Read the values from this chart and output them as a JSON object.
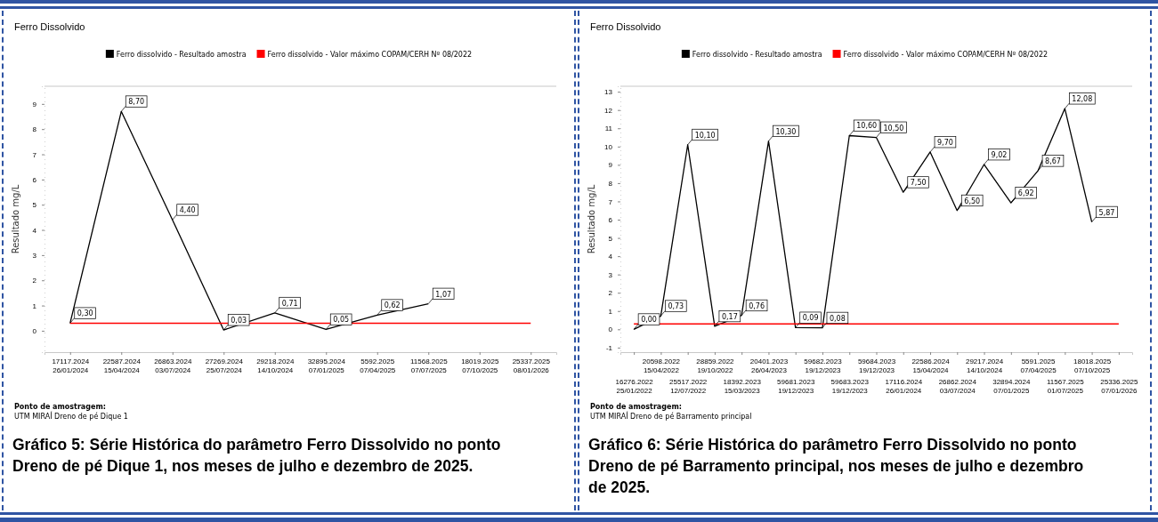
{
  "chart_data": [
    {
      "type": "line",
      "title": "Ferro Dissolvido",
      "ylabel": "Resultado mg/L",
      "categories": [
        "17117.2024\n26/01/2024",
        "22587.2024\n15/04/2024",
        "26863.2024\n03/07/2024",
        "27269.2024\n25/07/2024",
        "29218.2024\n14/10/2024",
        "32895.2024\n07/01/2025",
        "5592.2025\n07/04/2025",
        "11568.2025\n07/07/2025",
        "18019.2025\n07/10/2025",
        "25337.2025\n08/01/2026"
      ],
      "series": [
        {
          "name": "Ferro dissolvido - Resultado amostra",
          "color": "#000000",
          "values": [
            0.3,
            8.7,
            4.4,
            0.03,
            0.71,
            0.05,
            0.62,
            1.07,
            null,
            null
          ],
          "value_labels": [
            "0,30",
            "8,70",
            "4,40",
            "0,03",
            "0,71",
            "0,05",
            "0,62",
            "1,07",
            null,
            null
          ]
        },
        {
          "name": "Ferro dissolvido - Valor máximo COPAM/CERH Nº 08/2022",
          "color": "#ff0000",
          "values": [
            0.3,
            0.3,
            0.3,
            0.3,
            0.3,
            0.3,
            0.3,
            0.3,
            0.3,
            0.3
          ]
        }
      ],
      "ylim": [
        -0.85,
        9.7
      ],
      "yticks": [
        0,
        1,
        2,
        3,
        4,
        5,
        6,
        7,
        8,
        9
      ],
      "legend": "top",
      "marker": "none",
      "annotations": [
        "Ponto de amostragem:",
        "UTM MIRAÍ Dreno de pé Dique 1",
        "Gráfico 5: Série Histórica do parâmetro Ferro Dissolvido no ponto Dreno de pé Dique 1, nos meses de julho e dezembro de 2025."
      ]
    },
    {
      "type": "line",
      "title": "Ferro Dissolvido",
      "ylabel": "Resultado mg/L",
      "categories": [
        "16276.2022\n25/01/2022",
        "20598.2022\n15/04/2022",
        "25517.2022\n12/07/2022",
        "28859.2022\n19/10/2022",
        "18392.2023\n15/03/2023",
        "20401.2023\n26/04/2023",
        "59681.2023\n19/12/2023",
        "59682.2023\n19/12/2023",
        "59683.2023\n19/12/2023",
        "59684.2023\n19/12/2023",
        "17116.2024\n26/01/2024",
        "22586.2024\n15/04/2024",
        "26862.2024\n03/07/2024",
        "29217.2024\n14/10/2024",
        "32894.2024\n07/01/2025",
        "5591.2025\n07/04/2025",
        "11567.2025\n01/07/2025",
        "18018.2025\n07/10/2025",
        "25336.2025\n07/01/2026"
      ],
      "series": [
        {
          "name": "Ferro dissolvido - Resultado amostra",
          "color": "#000000",
          "values": [
            0.0,
            0.73,
            10.1,
            0.17,
            0.76,
            10.3,
            0.09,
            0.08,
            10.6,
            10.5,
            7.5,
            9.7,
            6.5,
            9.02,
            6.92,
            8.67,
            12.08,
            5.87,
            null
          ],
          "value_labels": [
            "0,00",
            "0,73",
            "10,10",
            "0,17",
            "0,76",
            "10,30",
            "0,09",
            "0,08",
            "10,60",
            "10,50",
            "7,50",
            "9,70",
            "6,50",
            "9,02",
            "6,92",
            "8,67",
            "12,08",
            "5,87",
            null
          ]
        },
        {
          "name": "Ferro dissolvido - Valor máximo COPAM/CERH Nº 08/2022",
          "color": "#ff0000",
          "values": [
            0.3,
            0.3,
            0.3,
            0.3,
            0.3,
            0.3,
            0.3,
            0.3,
            0.3,
            0.3,
            0.3,
            0.3,
            0.3,
            0.3,
            0.3,
            0.3,
            0.3,
            0.3,
            0.3
          ]
        }
      ],
      "ylim": [
        -1.25,
        13.3
      ],
      "yticks": [
        -1,
        0,
        1,
        2,
        3,
        4,
        5,
        6,
        7,
        8,
        9,
        10,
        11,
        12,
        13
      ],
      "legend": "top",
      "marker": "none",
      "annotations": [
        "Ponto de amostragem:",
        "UTM MIRAÍ Dreno de pé Barramento principal",
        "Gráfico 6: Série Histórica do parâmetro Ferro Dissolvido no ponto Dreno de pé Barramento principal, nos meses de julho e dezembro de 2025."
      ]
    }
  ]
}
